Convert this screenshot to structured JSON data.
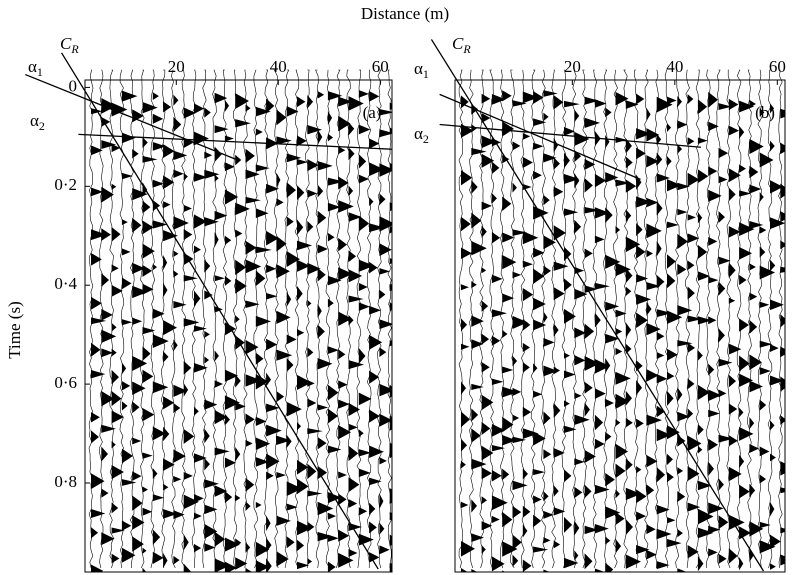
{
  "chart_data": [
    {
      "type": "seismogram",
      "x_label": "Distance (m)",
      "y_label": "Time (s)",
      "panel_label": "(a)",
      "xlim": [
        2.1,
        62.3
      ],
      "xticks": [
        20,
        40,
        60
      ],
      "ylim": [
        -0.015,
        0.98
      ],
      "yticks": [
        0,
        {
          "value": 0.2,
          "label": "0·2"
        },
        {
          "value": 0.4,
          "label": "0·4"
        },
        {
          "value": 0.6,
          "label": "0·6"
        },
        {
          "value": 0.8,
          "label": "0·8"
        }
      ],
      "lines": [
        {
          "label": "C",
          "sub": "R",
          "x": [
            -2.5,
            59.6
          ],
          "y": [
            -0.07,
            0.974
          ]
        },
        {
          "label": "α",
          "sub": "1",
          "x": [
            -9.6,
            31.6
          ],
          "y": [
            -0.026,
            0.145
          ]
        },
        {
          "label": "α",
          "sub": "2",
          "x": [
            0.8,
            62.3
          ],
          "y": [
            0.095,
            0.125
          ]
        }
      ]
    },
    {
      "type": "seismogram",
      "panel_label": "(b)",
      "xlim": [
        -2.9,
        61.5
      ],
      "xticks": [
        20,
        40,
        60
      ],
      "ylim": [
        -0.015,
        0.98
      ],
      "lines": [
        {
          "label": "C",
          "sub": "R",
          "x": [
            -7.5,
            57.3
          ],
          "y": [
            -0.097,
            0.978
          ]
        },
        {
          "label": "α",
          "sub": "1",
          "x": [
            -5.9,
            33.3
          ],
          "y": [
            0.014,
            0.186
          ]
        },
        {
          "label": "α",
          "sub": "2",
          "x": [
            -5.9,
            45.1
          ],
          "y": [
            0.075,
            0.121
          ]
        }
      ]
    }
  ]
}
